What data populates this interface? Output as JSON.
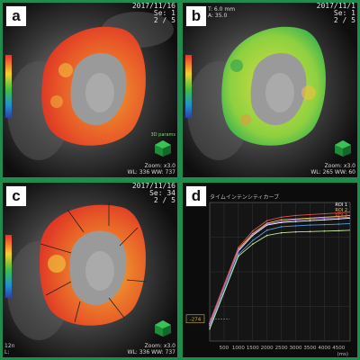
{
  "panels": [
    {
      "letter": "a",
      "date": "2017/11/16",
      "series": "Se: 1",
      "slice": "2 / 5",
      "zoom": "Zoom: x3.0",
      "wlww": "WL: 336  WW: 737",
      "cube_label": "3D params"
    },
    {
      "letter": "b",
      "date": "2017/11/1",
      "series": "Se: 1",
      "slice": "2 / 5",
      "zoom": "Zoom: x3.0",
      "wlww": "WL: 265  WW: 60",
      "tl_line1": "T: 6.0 mm",
      "tl_line2": "A: 35.0",
      "cube_label": ""
    },
    {
      "letter": "c",
      "date": "2017/11/16",
      "series": "Se: 34",
      "slice": "2 / 5",
      "zoom": "Zoom: x3.0",
      "wlww": "WL: 336  WW: 737",
      "bl_line1": "12n",
      "bl_line2": "L:",
      "cube_label": ""
    },
    {
      "letter": "d"
    }
  ],
  "colors": {
    "frame": "#1f8c4e",
    "roi1": "#ffffff",
    "roi2": "#e8c35a",
    "roi3": "#e05050",
    "roi4": "#a070d0",
    "roi5": "#50a0e0",
    "roi6": "#c8e8a0"
  },
  "chart_data": {
    "type": "line",
    "title": "タイムインテンシティカーブ",
    "xlabel": "(ms)",
    "x": [
      0,
      1000,
      1500,
      2000,
      2500,
      3000,
      3500,
      4000,
      4500,
      5000
    ],
    "x_ticks": [
      500,
      1000,
      1500,
      2000,
      2500,
      3000,
      3500,
      4000,
      4500
    ],
    "xlim": [
      0,
      4900
    ],
    "ylim": [
      -400,
      400
    ],
    "y_marker": -274,
    "legend_placement": "top-right",
    "series": [
      {
        "name": "ROI 1",
        "color": "#ffffff",
        "values": [
          -300,
          120,
          210,
          270,
          285,
          290,
          295,
          300,
          305,
          310
        ]
      },
      {
        "name": "ROI 2",
        "color": "#e8c35a",
        "values": [
          -310,
          130,
          220,
          280,
          300,
          305,
          310,
          315,
          320,
          325
        ]
      },
      {
        "name": "ROI 3",
        "color": "#e05050",
        "values": [
          -290,
          140,
          235,
          295,
          315,
          325,
          330,
          335,
          340,
          345
        ]
      },
      {
        "name": "",
        "color": "#a070d0",
        "values": [
          -305,
          125,
          215,
          275,
          290,
          300,
          305,
          310,
          312,
          315
        ]
      },
      {
        "name": "",
        "color": "#50a0e0",
        "values": [
          -320,
          100,
          180,
          240,
          260,
          265,
          270,
          272,
          275,
          278
        ]
      },
      {
        "name": "",
        "color": "#c8e8a0",
        "values": [
          -330,
          90,
          160,
          210,
          225,
          230,
          232,
          235,
          237,
          240
        ]
      }
    ]
  }
}
